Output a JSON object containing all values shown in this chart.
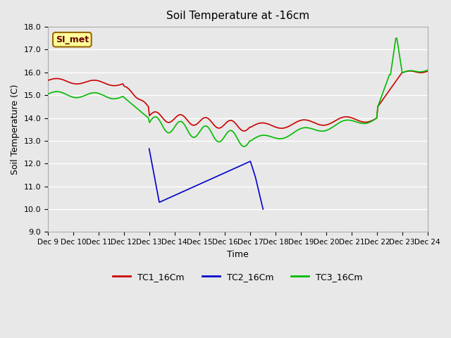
{
  "title": "Soil Temperature at -16cm",
  "xlabel": "Time",
  "ylabel": "Soil Temperature (C)",
  "ylim": [
    9.0,
    18.0
  ],
  "yticks": [
    9.0,
    10.0,
    11.0,
    12.0,
    13.0,
    14.0,
    15.0,
    16.0,
    17.0,
    18.0
  ],
  "xlim": [
    0,
    15
  ],
  "background_color": "#e8e8e8",
  "plot_bg_color": "#e8e8e8",
  "grid_color": "#ffffff",
  "legend_labels": [
    "TC1_16Cm",
    "TC2_16Cm",
    "TC3_16Cm"
  ],
  "legend_colors": [
    "#cc0000",
    "#0000cc",
    "#00cc00"
  ],
  "watermark_text": "SI_met",
  "watermark_bg": "#ffff99",
  "watermark_border": "#996600",
  "xtick_labels": [
    "Dec 9",
    "Dec 10",
    "Dec 11",
    "Dec 12",
    "Dec 13",
    "Dec 14",
    "Dec 15",
    "Dec 16",
    "Dec 17",
    "Dec 18",
    "Dec 19",
    "Dec 20",
    "Dec 21",
    "Dec 22",
    "Dec 23",
    "Dec 24"
  ],
  "tc1_color": "#cc0000",
  "tc2_color": "#0000cc",
  "tc3_color": "#00bb00"
}
